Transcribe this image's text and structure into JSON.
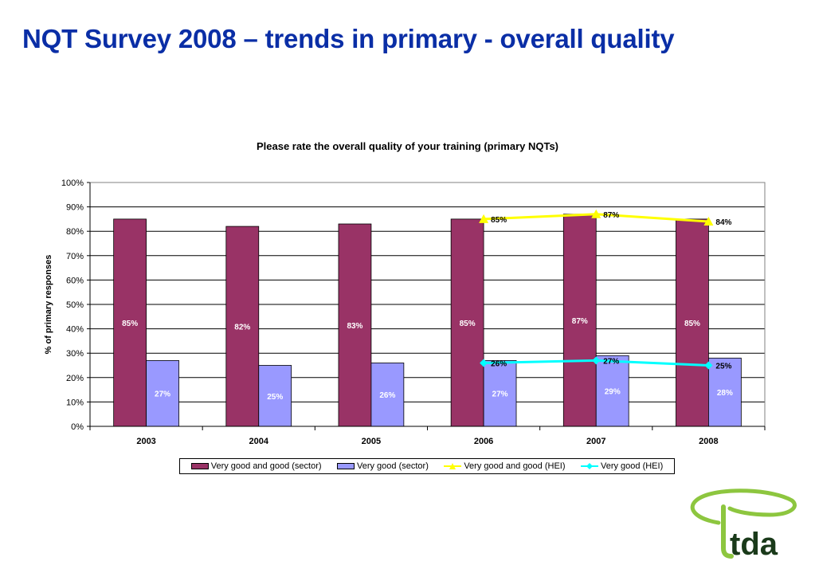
{
  "slide": {
    "title": "NQT Survey 2008 – trends in primary - overall quality"
  },
  "chart_data": {
    "type": "bar",
    "title": "Please rate the overall quality of your training (primary NQTs)",
    "ylabel": "% of primary responses",
    "xlabel": "",
    "ylim": [
      0,
      100
    ],
    "yticks": [
      "0%",
      "10%",
      "20%",
      "30%",
      "40%",
      "50%",
      "60%",
      "70%",
      "80%",
      "90%",
      "100%"
    ],
    "categories": [
      "2003",
      "2004",
      "2005",
      "2006",
      "2007",
      "2008"
    ],
    "grid": true,
    "legend_position": "bottom",
    "series": [
      {
        "name": "Very good and good (sector)",
        "kind": "bar",
        "color": "#993366",
        "values": [
          85,
          82,
          83,
          85,
          87,
          85
        ],
        "labels": [
          "85%",
          "82%",
          "83%",
          "85%",
          "87%",
          "85%"
        ]
      },
      {
        "name": "Very good (sector)",
        "kind": "bar",
        "color": "#9999ff",
        "values": [
          27,
          25,
          26,
          27,
          29,
          28
        ],
        "labels": [
          "27%",
          "25%",
          "26%",
          "27%",
          "29%",
          "28%"
        ]
      },
      {
        "name": "Very good and good (HEI)",
        "kind": "line",
        "color": "#ffff00",
        "marker": "triangle",
        "values": [
          null,
          null,
          null,
          85,
          87,
          84
        ],
        "labels": [
          null,
          null,
          null,
          "85%",
          "87%",
          "84%"
        ]
      },
      {
        "name": "Very good (HEI)",
        "kind": "line",
        "color": "#00ffff",
        "marker": "diamond",
        "values": [
          null,
          null,
          null,
          26,
          27,
          25
        ],
        "labels": [
          null,
          null,
          null,
          "26%",
          "27%",
          "25%"
        ]
      }
    ]
  },
  "logo": {
    "text": "tda",
    "colors": {
      "arc": "#8dc63f",
      "text": "#1a3a1a"
    }
  }
}
